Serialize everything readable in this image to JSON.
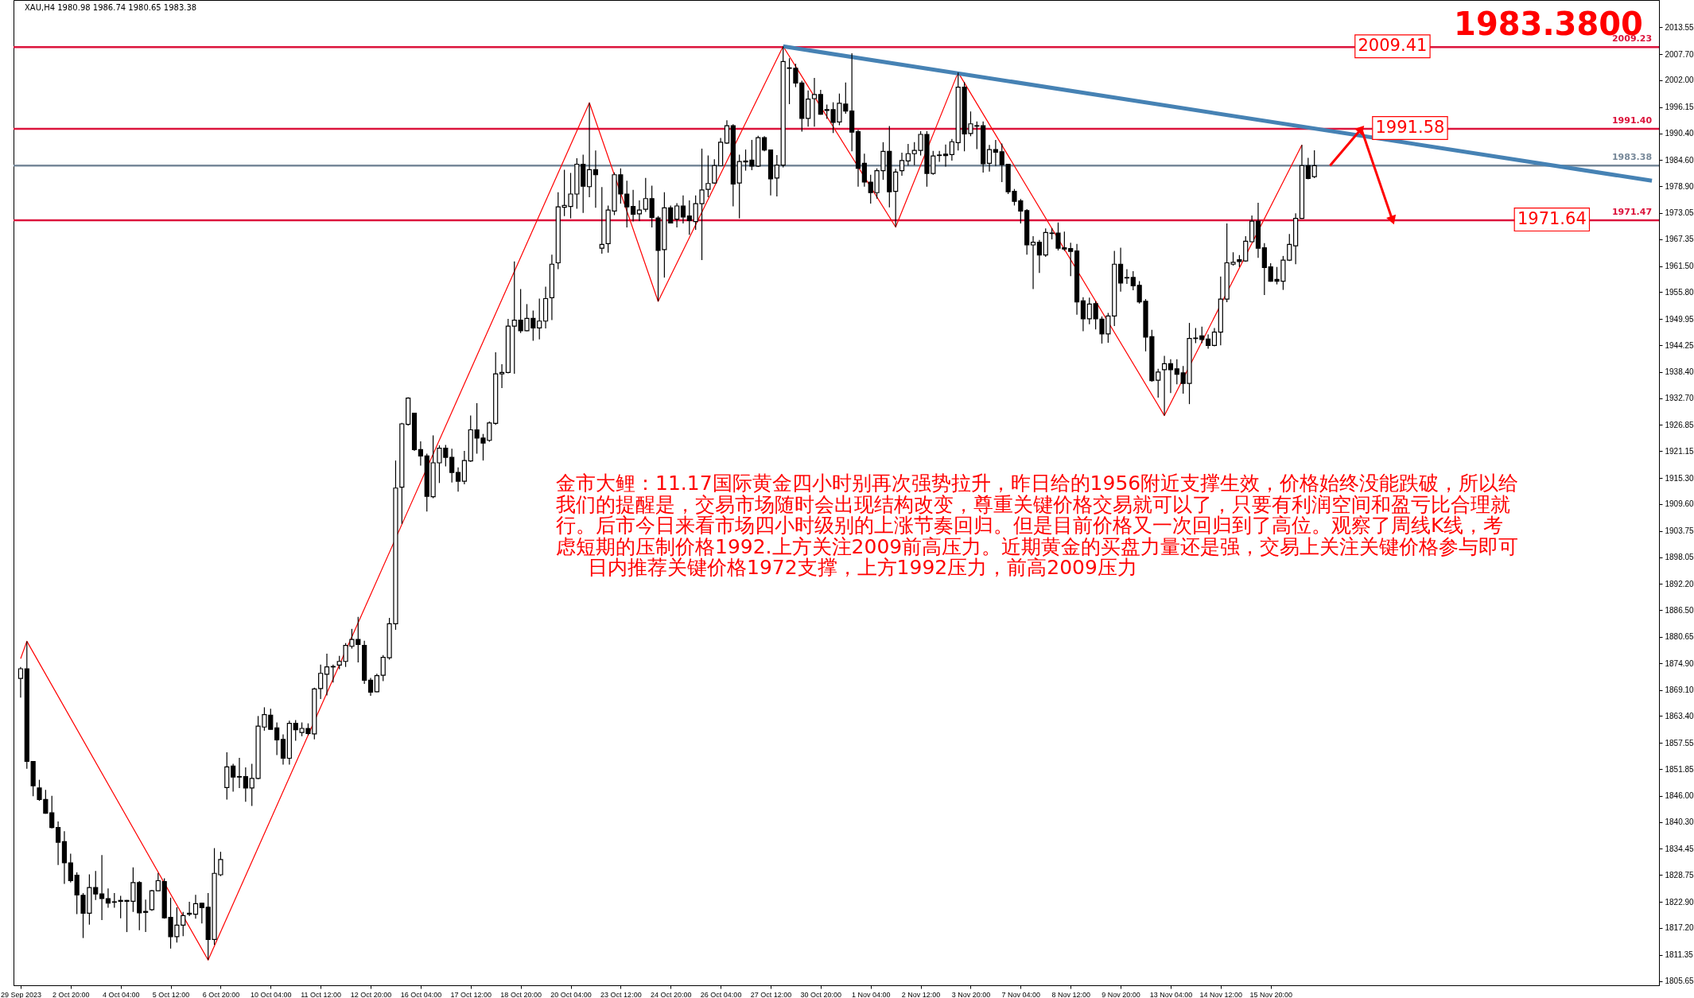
{
  "chart_data": {
    "type": "candlestick",
    "title": "XAU,H4  1980.98 1986.74 1980.65 1983.38",
    "categories": [
      "29 Sep 2023",
      null,
      null,
      null,
      null,
      null,
      null,
      null,
      "2 Oct 20:00",
      null,
      null,
      null,
      null,
      null,
      null,
      null,
      "4 Oct 04:00",
      null,
      null,
      null,
      null,
      null,
      null,
      null,
      "5 Oct 12:00",
      null,
      null,
      null,
      null,
      null,
      null,
      null,
      "6 Oct 20:00",
      null,
      null,
      null,
      null,
      null,
      null,
      null,
      "10 Oct 04:00",
      null,
      null,
      null,
      null,
      null,
      null,
      null,
      "11 Oct 12:00",
      null,
      null,
      null,
      null,
      null,
      null,
      null,
      "12 Oct 20:00",
      null,
      null,
      null,
      null,
      null,
      null,
      null,
      "16 Oct 04:00",
      null,
      null,
      null,
      null,
      null,
      null,
      null,
      "17 Oct 12:00",
      null,
      null,
      null,
      null,
      null,
      null,
      null,
      "18 Oct 20:00",
      null,
      null,
      null,
      null,
      null,
      null,
      null,
      "20 Oct 04:00",
      null,
      null,
      null,
      null,
      null,
      null,
      null,
      "23 Oct 12:00",
      null,
      null,
      null,
      null,
      null,
      null,
      null,
      "24 Oct 20:00",
      null,
      null,
      null,
      null,
      null,
      null,
      null,
      "26 Oct 04:00",
      null,
      null,
      null,
      null,
      null,
      null,
      null,
      "27 Oct 12:00",
      null,
      null,
      null,
      null,
      null,
      null,
      null,
      "30 Oct 20:00",
      null,
      null,
      null,
      null,
      null,
      null,
      null,
      "1 Nov 04:00",
      null,
      null,
      null,
      null,
      null,
      null,
      null,
      "2 Nov 12:00",
      null,
      null,
      null,
      null,
      null,
      null,
      null,
      "3 Nov 20:00",
      null,
      null,
      null,
      null,
      null,
      null,
      null,
      "7 Nov 04:00",
      null,
      null,
      null,
      null,
      null,
      null,
      null,
      "8 Nov 12:00",
      null,
      null,
      null,
      null,
      null,
      null,
      null,
      "9 Nov 20:00",
      null,
      null,
      null,
      null,
      null,
      null,
      null,
      "13 Nov 04:00",
      null,
      null,
      null,
      null,
      null,
      null,
      null,
      "14 Nov 12:00",
      null,
      null,
      null,
      null,
      null,
      null,
      null,
      "15 Nov 20:00",
      null,
      null,
      null,
      null,
      null,
      null,
      null,
      null,
      null,
      null,
      null,
      null,
      null,
      null,
      null,
      null,
      null,
      null,
      null,
      null,
      null,
      null,
      null,
      null,
      null,
      null,
      null,
      null,
      null,
      null,
      null,
      null,
      null,
      null,
      null,
      null,
      null,
      null,
      null,
      null,
      null,
      null,
      null,
      null,
      null,
      null,
      null,
      null,
      null,
      null,
      null,
      null,
      null,
      null,
      null,
      null,
      null,
      null,
      null,
      null,
      null
    ],
    "ohlc": [
      [
        1871.6,
        1874.1,
        1867.4,
        1873.7
      ],
      [
        1873.7,
        1879.7,
        1851.9,
        1853.5
      ],
      [
        1853.5,
        1853.6,
        1845.9,
        1848.2
      ],
      [
        1847.7,
        1849.5,
        1844.9,
        1845.2
      ],
      [
        1845.2,
        1847.3,
        1842.1,
        1842.2
      ],
      [
        1842.3,
        1846.0,
        1838.9,
        1839.1
      ],
      [
        1839.1,
        1840.4,
        1830.9,
        1835.9
      ],
      [
        1836.0,
        1838.3,
        1826.8,
        1831.4
      ],
      [
        1831.4,
        1833.4,
        1827.1,
        1827.5
      ],
      [
        1828.7,
        1829.3,
        1820.2,
        1824.4
      ],
      [
        1824.3,
        1824.8,
        1815.0,
        1820.4
      ],
      [
        1820.4,
        1828.9,
        1817.9,
        1826.0
      ],
      [
        1826.0,
        1829.6,
        1823.3,
        1824.6
      ],
      [
        1824.6,
        1833.1,
        1818.9,
        1823.6
      ],
      [
        1823.6,
        1825.8,
        1821.6,
        1822.6
      ],
      [
        1822.9,
        1824.8,
        1821.6,
        1822.8
      ],
      [
        1823.2,
        1824.2,
        1819.3,
        1823.0
      ],
      [
        1823.2,
        1823.3,
        1816.3,
        1823.0
      ],
      [
        1823.0,
        1830.4,
        1820.7,
        1827.1
      ],
      [
        1827.1,
        1827.4,
        1816.7,
        1820.5
      ],
      [
        1820.8,
        1823.4,
        1816.3,
        1820.6
      ],
      [
        1821.2,
        1825.5,
        1820.9,
        1825.3
      ],
      [
        1825.3,
        1829.2,
        1825.2,
        1827.5
      ],
      [
        1827.3,
        1828.0,
        1819.2,
        1819.4
      ],
      [
        1819.5,
        1823.8,
        1812.7,
        1815.3
      ],
      [
        1815.3,
        1821.7,
        1814.0,
        1817.8
      ],
      [
        1817.8,
        1820.7,
        1815.4,
        1819.9
      ],
      [
        1820.4,
        1822.9,
        1819.8,
        1820.2
      ],
      [
        1820.2,
        1824.4,
        1819.2,
        1822.5
      ],
      [
        1822.6,
        1822.7,
        1818.2,
        1821.6
      ],
      [
        1821.7,
        1824.8,
        1810.2,
        1814.7
      ],
      [
        1814.7,
        1834.6,
        1813.5,
        1829.1
      ],
      [
        1828.8,
        1833.8,
        1828.5,
        1832.1
      ],
      [
        1847.8,
        1855.5,
        1845.2,
        1852.3
      ],
      [
        1852.5,
        1853.0,
        1846.9,
        1850.1
      ],
      [
        1850.2,
        1854.3,
        1847.7,
        1850.1
      ],
      [
        1850.2,
        1852.2,
        1844.7,
        1847.7
      ],
      [
        1847.7,
        1853.0,
        1843.8,
        1849.8
      ],
      [
        1849.8,
        1863.4,
        1849.6,
        1861.2
      ],
      [
        1861.0,
        1865.3,
        1860.2,
        1863.7
      ],
      [
        1863.6,
        1865.0,
        1860.5,
        1860.5
      ],
      [
        1860.8,
        1862.0,
        1854.9,
        1858.2
      ],
      [
        1858.3,
        1859.4,
        1852.8,
        1854.2
      ],
      [
        1854.2,
        1862.4,
        1852.8,
        1861.8
      ],
      [
        1861.8,
        1862.5,
        1858.0,
        1860.4
      ],
      [
        1859.8,
        1862.0,
        1859.0,
        1860.7
      ],
      [
        1860.7,
        1861.8,
        1859.2,
        1859.6
      ],
      [
        1859.5,
        1869.6,
        1858.3,
        1869.3
      ],
      [
        1869.4,
        1874.6,
        1867.1,
        1872.7
      ],
      [
        1872.5,
        1877.0,
        1867.9,
        1874.1
      ],
      [
        1874.1,
        1874.6,
        1870.7,
        1874.2
      ],
      [
        1874.5,
        1876.5,
        1873.6,
        1875.3
      ],
      [
        1875.3,
        1879.3,
        1874.1,
        1878.8
      ],
      [
        1878.6,
        1882.4,
        1878.1,
        1880.1
      ],
      [
        1880.1,
        1885.0,
        1875.1,
        1879.0
      ],
      [
        1878.8,
        1879.8,
        1870.4,
        1871.2
      ],
      [
        1871.2,
        1871.7,
        1867.8,
        1868.6
      ],
      [
        1868.7,
        1872.6,
        1868.6,
        1872.2
      ],
      [
        1872.3,
        1876.7,
        1871.0,
        1876.2
      ],
      [
        1876.1,
        1884.8,
        1875.7,
        1883.5
      ],
      [
        1883.5,
        1919.1,
        1882.2,
        1913.1
      ],
      [
        1913.3,
        1927.3,
        1905.3,
        1927.1
      ],
      [
        1927.0,
        1932.9,
        1926.7,
        1932.7
      ],
      [
        1929.4,
        1929.5,
        1921.2,
        1921.5
      ],
      [
        1921.5,
        1923.3,
        1918.0,
        1920.1
      ],
      [
        1920.1,
        1920.6,
        1908.0,
        1911.3
      ],
      [
        1911.2,
        1924.6,
        1910.9,
        1918.6
      ],
      [
        1918.6,
        1922.4,
        1914.2,
        1921.8
      ],
      [
        1921.8,
        1922.5,
        1917.8,
        1919.8
      ],
      [
        1919.8,
        1921.7,
        1914.3,
        1916.5
      ],
      [
        1916.5,
        1917.6,
        1912.3,
        1914.6
      ],
      [
        1914.6,
        1921.2,
        1913.9,
        1919.1
      ],
      [
        1919.0,
        1928.9,
        1918.8,
        1925.8
      ],
      [
        1925.8,
        1931.6,
        1920.6,
        1924.0
      ],
      [
        1924.0,
        1924.9,
        1919.1,
        1922.9
      ],
      [
        1923.5,
        1927.6,
        1923.2,
        1927.3
      ],
      [
        1927.2,
        1942.7,
        1926.9,
        1938.0
      ],
      [
        1938.0,
        1940.1,
        1934.9,
        1938.3
      ],
      [
        1938.3,
        1950.0,
        1938.1,
        1948.4
      ],
      [
        1948.4,
        1962.5,
        1938.0,
        1949.7
      ],
      [
        1949.7,
        1956.5,
        1946.9,
        1947.4
      ],
      [
        1947.4,
        1953.2,
        1947.3,
        1950.1
      ],
      [
        1950.1,
        1951.8,
        1945.2,
        1948.0
      ],
      [
        1948.0,
        1954.4,
        1945.5,
        1949.5
      ],
      [
        1949.5,
        1957.0,
        1947.9,
        1954.4
      ],
      [
        1954.6,
        1964.0,
        1949.7,
        1961.9
      ],
      [
        1962.2,
        1977.6,
        1960.8,
        1974.4
      ],
      [
        1974.3,
        1982.5,
        1972.4,
        1974.7
      ],
      [
        1974.5,
        1981.8,
        1971.9,
        1977.2
      ],
      [
        1977.2,
        1985.0,
        1974.0,
        1983.7
      ],
      [
        1983.7,
        1985.8,
        1973.1,
        1978.9
      ],
      [
        1978.8,
        1997.1,
        1976.5,
        1982.5
      ],
      [
        1982.5,
        1986.7,
        1974.2,
        1981.4
      ],
      [
        1965.4,
        1978.7,
        1964.2,
        1966.2
      ],
      [
        1966.4,
        1974.7,
        1964.4,
        1973.7
      ],
      [
        1973.5,
        1981.9,
        1972.6,
        1981.4
      ],
      [
        1981.4,
        1982.8,
        1975.1,
        1977.2
      ],
      [
        1977.2,
        1980.1,
        1969.9,
        1974.4
      ],
      [
        1974.5,
        1978.1,
        1971.2,
        1972.8
      ],
      [
        1972.9,
        1975.8,
        1971.3,
        1973.7
      ],
      [
        1973.9,
        1980.7,
        1973.3,
        1976.2
      ],
      [
        1976.2,
        1979.0,
        1969.9,
        1972.1
      ],
      [
        1972.0,
        1972.4,
        1953.8,
        1964.9
      ],
      [
        1965.1,
        1977.6,
        1959.0,
        1974.2
      ],
      [
        1974.2,
        1974.7,
        1970.8,
        1970.9
      ],
      [
        1971.7,
        1975.2,
        1969.9,
        1974.6
      ],
      [
        1974.6,
        1976.9,
        1970.8,
        1972.2
      ],
      [
        1972.4,
        1975.8,
        1968.3,
        1971.4
      ],
      [
        1971.2,
        1976.9,
        1969.4,
        1975.1
      ],
      [
        1975.1,
        1987.1,
        1962.8,
        1978.1
      ],
      [
        1978.2,
        1985.6,
        1976.5,
        1979.5
      ],
      [
        1979.6,
        1984.8,
        1979.4,
        1983.4
      ],
      [
        1983.4,
        1989.4,
        1983.3,
        1988.5
      ],
      [
        1988.3,
        1993.3,
        1988.1,
        1992.1
      ],
      [
        1992.1,
        1992.4,
        1974.5,
        1979.4
      ],
      [
        1979.6,
        1985.8,
        1971.9,
        1984.3
      ],
      [
        1984.4,
        1986.9,
        1982.3,
        1984.2
      ],
      [
        1984.6,
        1989.0,
        1982.4,
        1983.3
      ],
      [
        1983.3,
        1989.9,
        1983.1,
        1989.5
      ],
      [
        1989.5,
        1989.8,
        1986.5,
        1986.8
      ],
      [
        1986.8,
        1986.9,
        1976.9,
        1980.5
      ],
      [
        1980.7,
        1985.7,
        1976.7,
        1983.5
      ],
      [
        1983.5,
        2009.4,
        1983.0,
        2006.1
      ],
      [
        2004.7,
        2006.8,
        1996.8,
        2004.6
      ],
      [
        2004.6,
        2005.6,
        2000.5,
        2001.4
      ],
      [
        2001.4,
        2001.9,
        1990.8,
        1993.7
      ],
      [
        1993.7,
        1999.8,
        1991.9,
        1997.9
      ],
      [
        1998.0,
        2002.5,
        1991.9,
        1998.9
      ],
      [
        1998.9,
        1999.9,
        1994.5,
        1994.6
      ],
      [
        1995.6,
        1996.7,
        1993.6,
        1995.4
      ],
      [
        1995.6,
        1997.2,
        1990.5,
        1992.8
      ],
      [
        1992.9,
        1999.1,
        1992.2,
        1997.0
      ],
      [
        1996.8,
        2001.5,
        1994.7,
        1995.3
      ],
      [
        1995.3,
        2007.9,
        1986.5,
        1990.7
      ],
      [
        1990.8,
        1991.2,
        1978.8,
        1982.8
      ],
      [
        1983.9,
        1986.0,
        1978.8,
        1979.8
      ],
      [
        1979.8,
        1981.4,
        1975.1,
        1977.5
      ],
      [
        1977.5,
        1982.8,
        1976.2,
        1982.3
      ],
      [
        1982.3,
        1988.5,
        1980.3,
        1986.5
      ],
      [
        1986.5,
        1992.0,
        1974.3,
        1977.7
      ],
      [
        1977.8,
        1982.7,
        1970.0,
        1982.0
      ],
      [
        1982.3,
        1986.2,
        1981.2,
        1984.5
      ],
      [
        1984.4,
        1988.1,
        1983.4,
        1986.0
      ],
      [
        1986.0,
        1988.5,
        1983.5,
        1986.7
      ],
      [
        1986.7,
        1990.9,
        1985.6,
        1990.2
      ],
      [
        1990.2,
        1990.9,
        1978.8,
        1981.7
      ],
      [
        1981.7,
        1986.6,
        1981.4,
        1985.5
      ],
      [
        1985.7,
        1986.6,
        1984.2,
        1985.6
      ],
      [
        1985.9,
        1988.0,
        1983.2,
        1985.6
      ],
      [
        1985.8,
        1989.2,
        1984.5,
        1988.6
      ],
      [
        1988.4,
        2003.7,
        1986.7,
        2000.5
      ],
      [
        2000.5,
        2001.6,
        1986.5,
        1990.3
      ],
      [
        1990.4,
        1995.2,
        1989.8,
        1992.5
      ],
      [
        1992.0,
        1993.0,
        1987.0,
        1992.1
      ],
      [
        1992.1,
        1993.0,
        1981.9,
        1983.8
      ],
      [
        1983.9,
        1987.9,
        1982.1,
        1986.9
      ],
      [
        1986.9,
        1989.0,
        1983.3,
        1986.3
      ],
      [
        1986.4,
        1988.2,
        1979.8,
        1983.6
      ],
      [
        1983.7,
        1983.8,
        1977.2,
        1977.7
      ],
      [
        1977.8,
        1978.3,
        1974.7,
        1975.6
      ],
      [
        1975.7,
        1976.1,
        1970.8,
        1973.5
      ],
      [
        1973.6,
        1973.9,
        1964.0,
        1966.1
      ],
      [
        1966.1,
        1968.0,
        1956.5,
        1966.7
      ],
      [
        1966.7,
        1967.2,
        1960.0,
        1963.9
      ],
      [
        1963.9,
        1969.7,
        1963.5,
        1968.8
      ],
      [
        1968.7,
        1969.8,
        1967.3,
        1968.6
      ],
      [
        1968.7,
        1971.0,
        1964.9,
        1965.4
      ],
      [
        1965.5,
        1969.0,
        1964.8,
        1965.2
      ],
      [
        1965.3,
        1966.6,
        1959.3,
        1964.7
      ],
      [
        1964.8,
        1966.3,
        1950.9,
        1953.7
      ],
      [
        1953.9,
        1954.7,
        1947.3,
        1950.0
      ],
      [
        1950.0,
        1954.6,
        1948.8,
        1953.2
      ],
      [
        1953.3,
        1953.9,
        1947.7,
        1950.0
      ],
      [
        1949.9,
        1950.5,
        1944.6,
        1946.7
      ],
      [
        1946.7,
        1951.3,
        1944.8,
        1950.6
      ],
      [
        1950.6,
        1964.8,
        1948.4,
        1961.9
      ],
      [
        1961.9,
        1965.5,
        1955.9,
        1957.8
      ],
      [
        1959.0,
        1960.8,
        1957.6,
        1958.9
      ],
      [
        1959.0,
        1960.4,
        1956.2,
        1957.2
      ],
      [
        1957.3,
        1958.2,
        1953.3,
        1953.7
      ],
      [
        1953.8,
        1954.3,
        1942.9,
        1946.0
      ],
      [
        1946.1,
        1947.6,
        1936.3,
        1936.5
      ],
      [
        1936.6,
        1939.1,
        1932.8,
        1938.4
      ],
      [
        1938.9,
        1941.9,
        1928.9,
        1940.2
      ],
      [
        1940.2,
        1941.2,
        1933.8,
        1938.9
      ],
      [
        1939.1,
        1941.2,
        1935.7,
        1937.9
      ],
      [
        1938.2,
        1939.7,
        1933.7,
        1935.9
      ],
      [
        1935.9,
        1949.1,
        1931.4,
        1945.7
      ],
      [
        1945.8,
        1948.0,
        1944.7,
        1945.7
      ],
      [
        1946.3,
        1948.3,
        1944.7,
        1945.5
      ],
      [
        1945.6,
        1946.6,
        1943.5,
        1944.2
      ],
      [
        1944.2,
        1948.0,
        1944.0,
        1947.1
      ],
      [
        1947.1,
        1959.2,
        1944.2,
        1954.3
      ],
      [
        1954.3,
        1970.8,
        1953.6,
        1962.2
      ],
      [
        1961.9,
        1964.5,
        1961.6,
        1962.3
      ],
      [
        1962.9,
        1963.9,
        1961.3,
        1962.5
      ],
      [
        1962.6,
        1968.0,
        1962.4,
        1966.9
      ],
      [
        1966.8,
        1972.5,
        1966.7,
        1971.3
      ],
      [
        1971.3,
        1975.3,
        1963.3,
        1965.4
      ],
      [
        1965.5,
        1966.5,
        1955.2,
        1961.2
      ],
      [
        1961.3,
        1962.1,
        1958.1,
        1958.2
      ],
      [
        1958.6,
        1961.3,
        1957.5,
        1958.2
      ],
      [
        1958.2,
        1963.7,
        1956.3,
        1962.8
      ],
      [
        1962.8,
        1968.5,
        1962.6,
        1966.2
      ],
      [
        1965.9,
        1973.0,
        1961.9,
        1971.9
      ],
      [
        1971.9,
        1987.9,
        1971.8,
        1983.4
      ],
      [
        1983.4,
        1985.1,
        1980.4,
        1980.6
      ],
      [
        1980.98,
        1986.74,
        1980.65,
        1983.38
      ],
      null,
      null,
      null,
      null,
      null,
      null,
      null,
      null,
      null,
      null,
      null,
      null,
      null,
      null,
      null,
      null,
      null,
      null,
      null,
      null,
      null,
      null,
      null,
      null,
      null,
      null,
      null,
      null,
      null,
      null,
      null,
      null,
      null,
      null,
      null,
      null,
      null,
      null,
      null,
      null,
      null,
      null,
      null,
      null,
      null,
      null,
      null,
      null,
      null,
      null,
      null,
      null,
      null,
      null
    ],
    "series": [
      {
        "type": "line",
        "color": "#ff0000",
        "values": [
          1875.9,
          1879.7,
          null,
          null,
          null,
          null,
          null,
          null,
          null,
          null,
          null,
          null,
          null,
          null,
          null,
          null,
          null,
          null,
          null,
          null,
          null,
          null,
          null,
          null,
          null,
          null,
          null,
          null,
          null,
          null,
          1810.2,
          null,
          null,
          null,
          null,
          null,
          null,
          null,
          null,
          null,
          null,
          null,
          null,
          null,
          null,
          null,
          null,
          null,
          null,
          null,
          null,
          null,
          null,
          null,
          null,
          null,
          null,
          null,
          null,
          null,
          null,
          null,
          null,
          null,
          null,
          null,
          null,
          null,
          null,
          null,
          null,
          null,
          null,
          null,
          null,
          null,
          null,
          null,
          null,
          null,
          null,
          null,
          null,
          null,
          null,
          null,
          null,
          null,
          null,
          null,
          null,
          1997.1,
          null,
          null,
          null,
          null,
          null,
          null,
          null,
          null,
          null,
          null,
          1953.8,
          null,
          null,
          null,
          null,
          null,
          null,
          null,
          null,
          null,
          null,
          null,
          null,
          null,
          null,
          null,
          null,
          null,
          null,
          null,
          2009.4,
          null,
          null,
          null,
          null,
          null,
          null,
          null,
          null,
          null,
          null,
          null,
          null,
          null,
          null,
          null,
          null,
          null,
          1970.0,
          null,
          null,
          null,
          null,
          null,
          null,
          null,
          null,
          null,
          2003.7,
          null,
          null,
          null,
          null,
          null,
          null,
          null,
          null,
          null,
          null,
          null,
          null,
          null,
          null,
          null,
          null,
          null,
          null,
          null,
          null,
          null,
          null,
          null,
          null,
          null,
          null,
          null,
          null,
          null,
          null,
          null,
          null,
          1928.9,
          null,
          null,
          null,
          null,
          null,
          null,
          null,
          null,
          null,
          null,
          null,
          null,
          null,
          null,
          null,
          null,
          null,
          null,
          null,
          null,
          null,
          1987.9,
          null,
          null,
          null,
          null,
          null,
          null,
          null,
          null,
          null,
          null,
          null,
          null,
          null,
          null,
          null,
          null,
          null,
          null,
          null,
          null,
          null,
          null,
          null,
          null,
          null,
          null,
          null,
          null,
          null,
          null,
          null,
          null,
          null,
          null,
          null,
          null,
          null,
          null,
          null,
          null,
          null,
          null,
          null,
          null,
          null,
          null,
          null,
          null,
          null,
          null,
          null,
          null,
          null,
          null,
          null,
          null
        ]
      },
      {
        "type": "line",
        "color": "#4682b4",
        "values": [
          null,
          null,
          null,
          null,
          null,
          null,
          null,
          null,
          null,
          null,
          null,
          null,
          null,
          null,
          null,
          null,
          null,
          null,
          null,
          null,
          null,
          null,
          null,
          null,
          null,
          null,
          null,
          null,
          null,
          null,
          null,
          null,
          null,
          null,
          null,
          null,
          null,
          null,
          null,
          null,
          null,
          null,
          null,
          null,
          null,
          null,
          null,
          null,
          null,
          null,
          null,
          null,
          null,
          null,
          null,
          null,
          null,
          null,
          null,
          null,
          null,
          null,
          null,
          null,
          null,
          null,
          null,
          null,
          null,
          null,
          null,
          null,
          null,
          null,
          null,
          null,
          null,
          null,
          null,
          null,
          null,
          null,
          null,
          null,
          null,
          null,
          null,
          null,
          null,
          null,
          null,
          null,
          null,
          null,
          null,
          null,
          null,
          null,
          null,
          null,
          null,
          null,
          null,
          null,
          null,
          null,
          null,
          null,
          null,
          null,
          null,
          null,
          null,
          null,
          null,
          null,
          null,
          null,
          null,
          null,
          null,
          null,
          2009.4,
          null,
          null,
          null,
          null,
          null,
          null,
          null,
          null,
          null,
          null,
          null,
          null,
          null,
          null,
          null,
          null,
          null,
          null,
          null,
          null,
          null,
          null,
          null,
          null,
          null,
          null,
          null,
          null,
          null,
          null,
          null,
          null,
          null,
          null,
          null,
          null,
          null,
          null,
          null,
          null,
          null,
          null,
          null,
          null,
          null,
          null,
          null,
          null,
          null,
          null,
          null,
          null,
          null,
          null,
          null,
          null,
          null,
          null,
          null,
          null,
          null,
          null,
          null,
          null,
          null,
          null,
          null,
          null,
          null,
          null,
          null,
          null,
          null,
          null,
          null,
          null,
          null,
          null,
          null,
          null,
          null,
          null,
          null,
          null,
          null,
          null,
          null,
          null,
          null,
          null,
          null,
          null,
          null,
          null,
          null,
          null,
          null,
          null,
          null,
          null,
          null,
          null,
          null,
          null,
          null,
          null,
          null,
          null,
          null,
          null,
          null,
          null,
          null,
          null,
          null,
          null,
          null,
          null,
          null,
          null,
          null,
          null,
          null,
          null,
          null,
          null,
          null,
          null,
          null,
          null,
          null,
          null,
          null,
          null,
          null,
          null,
          null,
          null,
          1980.1
        ]
      }
    ],
    "ylim": [
      1804.7,
      2019.5
    ],
    "yticks": [
      {
        "value": 2013.55,
        "label": "2013.55"
      },
      {
        "value": 2007.7,
        "label": "2007.70"
      },
      {
        "value": 2002,
        "label": "2002.00"
      },
      {
        "value": 1996.15,
        "label": "1996.15"
      },
      {
        "value": 1990.4,
        "label": "1990.40"
      },
      {
        "value": 1984.6,
        "label": "1984.60"
      },
      {
        "value": 1978.9,
        "label": "1978.90"
      },
      {
        "value": 1973.05,
        "label": "1973.05"
      },
      {
        "value": 1967.35,
        "label": "1967.35"
      },
      {
        "value": 1961.5,
        "label": "1961.50"
      },
      {
        "value": 1955.8,
        "label": "1955.80"
      },
      {
        "value": 1949.95,
        "label": "1949.95"
      },
      {
        "value": 1944.25,
        "label": "1944.25"
      },
      {
        "value": 1938.4,
        "label": "1938.40"
      },
      {
        "value": 1932.7,
        "label": "1932.70"
      },
      {
        "value": 1926.85,
        "label": "1926.85"
      },
      {
        "value": 1921.15,
        "label": "1921.15"
      },
      {
        "value": 1915.3,
        "label": "1915.30"
      },
      {
        "value": 1909.6,
        "label": "1909.60"
      },
      {
        "value": 1903.75,
        "label": "1903.75"
      },
      {
        "value": 1898.05,
        "label": "1898.05"
      },
      {
        "value": 1892.2,
        "label": "1892.20"
      },
      {
        "value": 1886.5,
        "label": "1886.50"
      },
      {
        "value": 1880.65,
        "label": "1880.65"
      },
      {
        "value": 1874.9,
        "label": "1874.90"
      },
      {
        "value": 1869.1,
        "label": "1869.10"
      },
      {
        "value": 1863.4,
        "label": "1863.40"
      },
      {
        "value": 1857.55,
        "label": "1857.55"
      },
      {
        "value": 1851.85,
        "label": "1851.85"
      },
      {
        "value": 1846,
        "label": "1846.00"
      },
      {
        "value": 1840.3,
        "label": "1840.30"
      },
      {
        "value": 1834.45,
        "label": "1834.45"
      },
      {
        "value": 1828.75,
        "label": "1828.75"
      },
      {
        "value": 1822.9,
        "label": "1822.90"
      },
      {
        "value": 1817.2,
        "label": "1817.20"
      },
      {
        "value": 1811.35,
        "label": "1811.35"
      },
      {
        "value": 1805.65,
        "label": "1805.65"
      }
    ],
    "ref_lines": [
      {
        "axis": "y",
        "value": 2009.23,
        "label": "2009.23",
        "color": "#dc143c"
      },
      {
        "axis": "y",
        "value": 1991.4,
        "label": "1991.40",
        "color": "#dc143c"
      },
      {
        "axis": "y",
        "value": 1971.47,
        "label": "1971.47",
        "color": "#dc143c"
      },
      {
        "axis": "y",
        "value": 1983.38,
        "label": "1983.38",
        "color": "#778899"
      }
    ],
    "annotations": [
      {
        "text": "2009.41",
        "y": 2009.41
      },
      {
        "text": "1991.58",
        "y": 1991.58
      },
      {
        "text": "1971.64",
        "y": 1971.64
      },
      "1983.3800",
      "金市大鲤：11.17国际黄金四小时别再次强势拉升，昨日给的1956附近支撑生效，价格始终没能跌破，所以给",
      "我们的提醒是，交易市场随时会出现结构改变，尊重关键价格交易就可以了，只要有利润空间和盈亏比合理就",
      "行。后市今日来看市场四小时级别的上涨节奏回归。但是目前价格又一次回归到了高位。观察了周线K线，考",
      "虑短期的压制价格1992.上方关注2009前高压力。近期黄金的买盘力量还是强，交易上关注关键价格参与即可",
      "日内推荐关键价格1972支撑，上方1992压力，前高2009压力"
    ]
  }
}
